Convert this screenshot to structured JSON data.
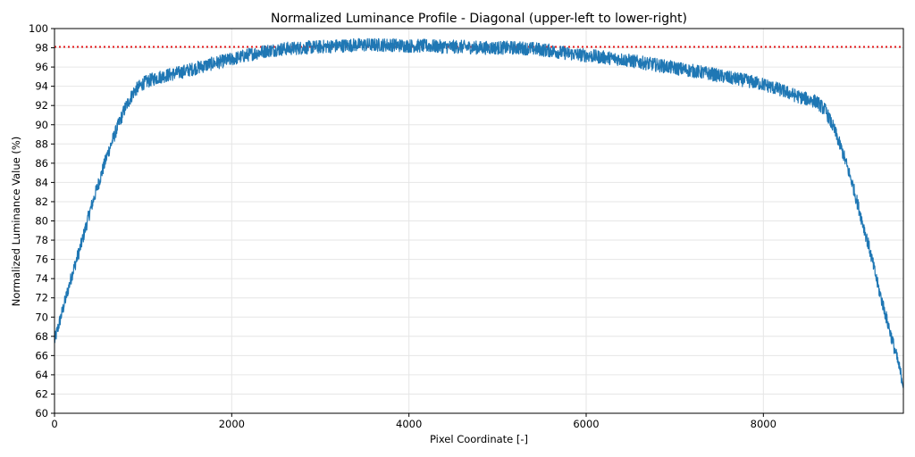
{
  "chart_data": {
    "type": "line",
    "title": "Normalized Luminance Profile - Diagonal (upper-left to lower-right)",
    "xlabel": "Pixel Coordinate [-]",
    "ylabel": "Normalized Luminance Value (%)",
    "xlim": [
      0,
      9580
    ],
    "ylim": [
      60,
      100
    ],
    "xticks": [
      0,
      2000,
      4000,
      6000,
      8000
    ],
    "xtick_labels": [
      "0",
      "2000",
      "4000",
      "6000",
      "8000"
    ],
    "yticks": [
      60,
      62,
      64,
      66,
      68,
      70,
      72,
      74,
      76,
      78,
      80,
      82,
      84,
      86,
      88,
      90,
      92,
      94,
      96,
      98,
      100
    ],
    "ytick_labels": [
      "60",
      "62",
      "64",
      "66",
      "68",
      "70",
      "72",
      "74",
      "76",
      "78",
      "80",
      "82",
      "84",
      "86",
      "88",
      "90",
      "92",
      "94",
      "96",
      "98",
      "100"
    ],
    "grid": true,
    "series": [
      {
        "color": "#1f77b4",
        "noise_amplitude": 0.7,
        "x": [
          0,
          100,
          200,
          300,
          400,
          500,
          600,
          700,
          800,
          900,
          1000,
          1100,
          1200,
          1400,
          1600,
          1800,
          2000,
          2200,
          2400,
          2600,
          2800,
          3000,
          3200,
          3400,
          3600,
          3800,
          4000,
          4200,
          4400,
          4600,
          4800,
          5000,
          5200,
          5400,
          5600,
          5800,
          6000,
          6200,
          6400,
          6600,
          6800,
          7000,
          7200,
          7400,
          7600,
          7800,
          8000,
          8200,
          8400,
          8600,
          8700,
          8800,
          8900,
          9000,
          9100,
          9200,
          9300,
          9400,
          9500,
          9580
        ],
        "y": [
          67.5,
          71.0,
          74.5,
          77.5,
          81.0,
          84.0,
          87.0,
          89.5,
          91.8,
          93.5,
          94.3,
          94.7,
          95.0,
          95.4,
          95.9,
          96.4,
          96.8,
          97.3,
          97.7,
          97.9,
          98.0,
          98.1,
          98.2,
          98.3,
          98.3,
          98.3,
          98.2,
          98.2,
          98.1,
          98.1,
          98.0,
          98.0,
          98.0,
          97.9,
          97.7,
          97.4,
          97.2,
          97.0,
          96.8,
          96.5,
          96.2,
          95.9,
          95.6,
          95.3,
          94.9,
          94.6,
          94.2,
          93.6,
          92.9,
          92.4,
          91.5,
          89.5,
          87.0,
          84.0,
          80.5,
          77.0,
          73.0,
          69.5,
          66.0,
          63.0
        ]
      }
    ],
    "reference_line": {
      "y": 98.1,
      "color": "#e41a1c",
      "style": "dotted"
    }
  }
}
